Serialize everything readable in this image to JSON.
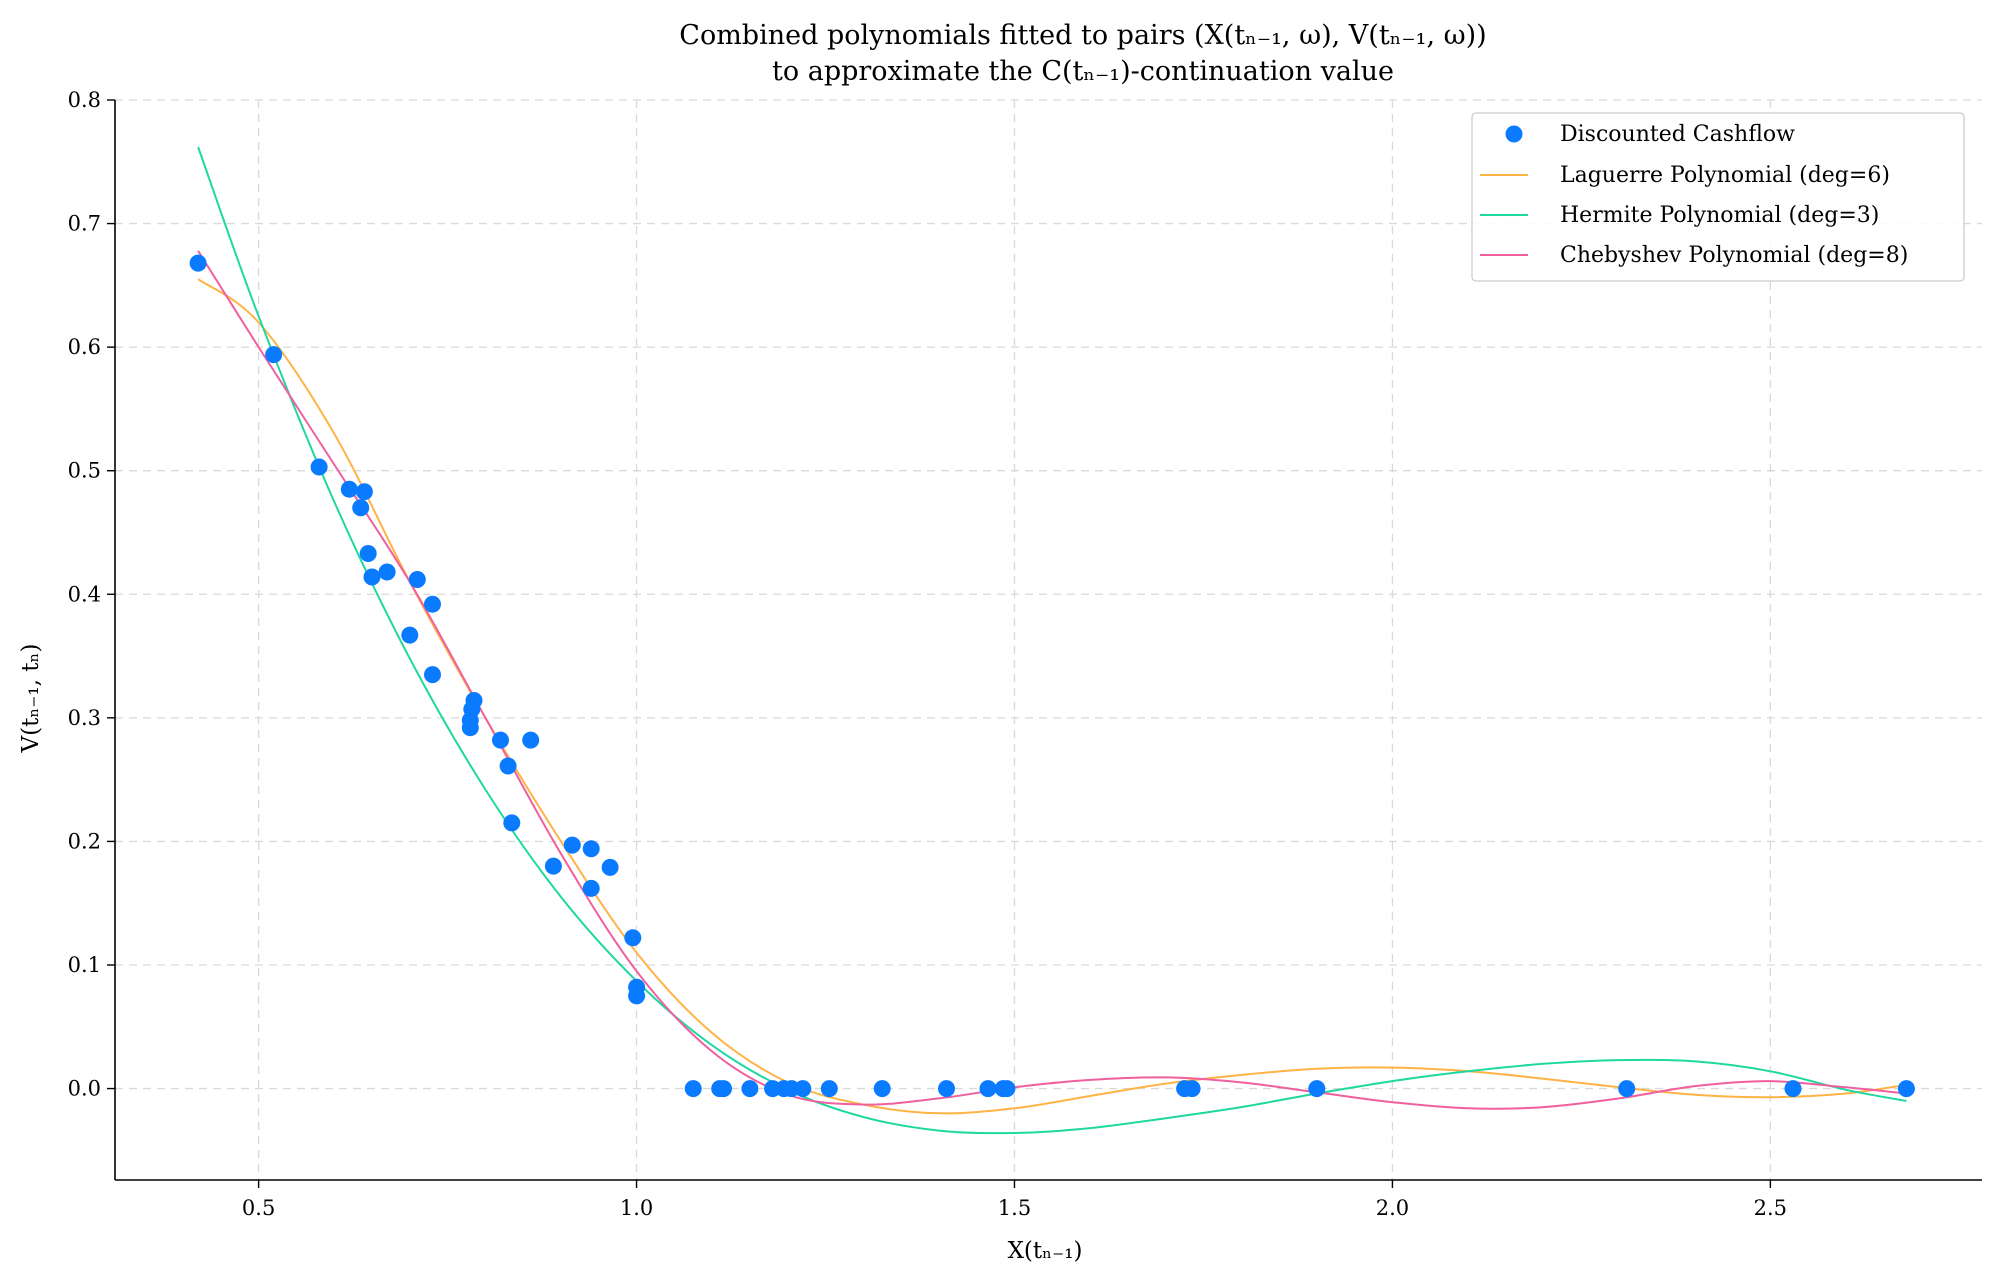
{
  "chart_data": {
    "type": "scatter",
    "title_line1": "Combined polynomials fitted to pairs (X(tₙ₋₁, ω), V(tₙ₋₁, ω))",
    "title_line2": "to approximate the C(tₙ₋₁)-continuation value",
    "xlabel": "X(tₙ₋₁)",
    "ylabel": "V(tₙ₋₁, tₙ)",
    "xlim": [
      0.31,
      2.78
    ],
    "ylim": [
      -0.074,
      0.8
    ],
    "xticks": [
      0.5,
      1.0,
      1.5,
      2.0,
      2.5
    ],
    "xtick_labels": [
      "0.5",
      "1.0",
      "1.5",
      "2.0",
      "2.5"
    ],
    "yticks": [
      0.0,
      0.1,
      0.2,
      0.3,
      0.4,
      0.5,
      0.6,
      0.7,
      0.8
    ],
    "ytick_labels": [
      "0.0",
      "0.1",
      "0.2",
      "0.3",
      "0.4",
      "0.5",
      "0.6",
      "0.7",
      "0.8"
    ],
    "grid": true,
    "legend_position": "top-right",
    "colors": {
      "points": "#0a7bff",
      "laguerre": "#ffb347",
      "hermite": "#1ed8a0",
      "chebyshev": "#f0609e"
    },
    "points": {
      "name": "Discounted Cashflow",
      "x": [
        0.42,
        0.52,
        0.58,
        0.62,
        0.635,
        0.64,
        0.645,
        0.65,
        0.67,
        0.7,
        0.71,
        0.73,
        0.73,
        0.78,
        0.78,
        0.782,
        0.785,
        0.82,
        0.83,
        0.835,
        0.86,
        0.89,
        0.915,
        0.94,
        0.94,
        0.965,
        0.995,
        1.0,
        1.0,
        1.075,
        1.11,
        1.115,
        1.15,
        1.18,
        1.195,
        1.205,
        1.22,
        1.255,
        1.325,
        1.41,
        1.465,
        1.485,
        1.49,
        1.725,
        1.735,
        1.9,
        2.31,
        2.53,
        2.68
      ],
      "y": [
        0.668,
        0.594,
        0.503,
        0.485,
        0.47,
        0.483,
        0.433,
        0.414,
        0.418,
        0.367,
        0.412,
        0.392,
        0.335,
        0.292,
        0.298,
        0.307,
        0.314,
        0.282,
        0.261,
        0.215,
        0.282,
        0.18,
        0.197,
        0.194,
        0.162,
        0.179,
        0.122,
        0.082,
        0.075,
        0.0,
        0.0,
        0.0,
        0.0,
        0.0,
        0.0,
        0.0,
        0.0,
        0.0,
        0.0,
        0.0,
        0.0,
        0.0,
        0.0,
        0.0,
        0.0,
        0.0,
        0.0,
        0.0,
        0.0
      ]
    },
    "series": [
      {
        "name": "Laguerre Polynomial (deg=6)",
        "x": [
          0.42,
          0.5,
          0.6,
          0.7,
          0.8,
          0.9,
          1.0,
          1.1,
          1.2,
          1.3,
          1.4,
          1.5,
          1.6,
          1.7,
          1.8,
          1.9,
          2.0,
          2.1,
          2.2,
          2.3,
          2.4,
          2.5,
          2.6,
          2.68
        ],
        "y": [
          0.655,
          0.62,
          0.53,
          0.41,
          0.3,
          0.2,
          0.11,
          0.045,
          0.005,
          -0.013,
          -0.02,
          -0.016,
          -0.006,
          0.004,
          0.011,
          0.016,
          0.017,
          0.014,
          0.008,
          0.001,
          -0.005,
          -0.007,
          -0.004,
          0.003
        ]
      },
      {
        "name": "Hermite Polynomial (deg=3)",
        "x": [
          0.42,
          0.5,
          0.6,
          0.7,
          0.8,
          0.9,
          1.0,
          1.1,
          1.2,
          1.3,
          1.4,
          1.5,
          1.6,
          1.7,
          1.8,
          1.9,
          2.0,
          2.1,
          2.2,
          2.3,
          2.4,
          2.5,
          2.6,
          2.68
        ],
        "y": [
          0.762,
          0.625,
          0.475,
          0.348,
          0.242,
          0.155,
          0.087,
          0.035,
          -0.001,
          -0.023,
          -0.034,
          -0.036,
          -0.032,
          -0.024,
          -0.015,
          -0.004,
          0.006,
          0.014,
          0.02,
          0.023,
          0.022,
          0.014,
          -0.001,
          -0.01
        ]
      },
      {
        "name": "Chebyshev Polynomial (deg=8)",
        "x": [
          0.42,
          0.5,
          0.6,
          0.7,
          0.8,
          0.9,
          1.0,
          1.1,
          1.2,
          1.3,
          1.4,
          1.5,
          1.6,
          1.7,
          1.8,
          1.9,
          2.0,
          2.1,
          2.2,
          2.3,
          2.4,
          2.5,
          2.6,
          2.68
        ],
        "y": [
          0.678,
          0.6,
          0.505,
          0.41,
          0.3,
          0.19,
          0.095,
          0.03,
          -0.005,
          -0.013,
          -0.008,
          0.001,
          0.007,
          0.009,
          0.005,
          -0.003,
          -0.011,
          -0.016,
          -0.015,
          -0.008,
          0.002,
          0.006,
          0.001,
          -0.004
        ]
      }
    ]
  }
}
